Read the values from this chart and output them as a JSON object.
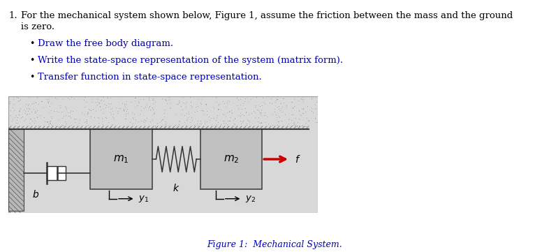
{
  "background_color": "#ffffff",
  "text_color_black": "#000000",
  "text_color_blue": "#0000bb",
  "arrow_force_color": "#cc0000",
  "figure_caption": "Figure 1:  Mechanical System.",
  "title_line1": "1.  For the mechanical system shown below, Figure 1, assume the friction between the mass and the ground",
  "title_line2": "is zero.",
  "bullet1": "Draw the free body diagram.",
  "bullet2": "Write the state-space representation of the system (matrix form).",
  "bullet3": "Transfer function in state-space representation.",
  "label_m1": "$m_1$",
  "label_m2": "$m_2$",
  "label_b": "$b$",
  "label_k": "$k$",
  "label_f": "$f$",
  "label_y1": "$y_1$",
  "label_y2": "$y_2$",
  "diagram_bg": "#d8d8d8",
  "wall_fill": "#aaaaaa",
  "mass_fill": "#c0c0c0",
  "mass_edge": "#444444",
  "line_color": "#333333",
  "hatch_color": "#666666"
}
